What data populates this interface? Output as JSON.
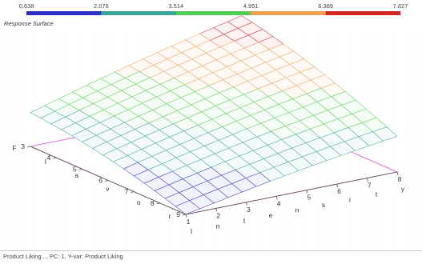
{
  "chart_data": {
    "type": "surface",
    "title": "Response Surface",
    "colorbar": {
      "tick_labels": [
        "0.638",
        "2.076",
        "3.514",
        "4.951",
        "6.389",
        "7.827"
      ],
      "range": [
        0.638,
        7.827
      ],
      "segment_colors": [
        "#2e2ec8",
        "#3aa394",
        "#52cc52",
        "#f0a050",
        "#d42424"
      ]
    },
    "axes": {
      "left_axis": {
        "label": "Flavor",
        "range": [
          3,
          9
        ],
        "ticks": [
          "3",
          "4",
          "5",
          "6",
          "7",
          "8",
          "9"
        ]
      },
      "right_axis": {
        "label": "Intensity",
        "range": [
          1,
          8
        ],
        "ticks": [
          "1",
          "2",
          "3",
          "4",
          "5",
          "6",
          "7",
          "8"
        ]
      }
    },
    "surface_model": {
      "description": "fitted quadratic response surface over left axis (3-9) and right axis (1-8)",
      "min_value": 0.638,
      "max_value": 7.827,
      "grid_cells": 15
    }
  },
  "footer": {
    "text": "Product Liking .., PC: 1, Y-var: Product Liking"
  }
}
